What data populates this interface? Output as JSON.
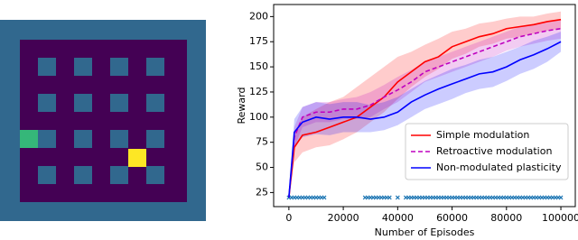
{
  "chart_data": {
    "type": "line",
    "xlabel": "Number of Episodes",
    "ylabel": "Reward",
    "xlim": [
      -5600,
      105300
    ],
    "ylim": [
      11,
      212
    ],
    "xticks": [
      0,
      20000,
      40000,
      60000,
      80000,
      100000
    ],
    "yticks": [
      25,
      50,
      75,
      100,
      125,
      150,
      175,
      200
    ],
    "legend": "lower right",
    "x": [
      0,
      2000,
      5000,
      10000,
      15000,
      20000,
      25000,
      30000,
      35000,
      40000,
      45000,
      50000,
      55000,
      60000,
      65000,
      70000,
      75000,
      80000,
      85000,
      90000,
      95000,
      100000
    ],
    "series": [
      {
        "name": "Simple modulation",
        "color": "#ff0000",
        "dash": false,
        "values": [
          20,
          70,
          82,
          85,
          90,
          95,
          100,
          110,
          120,
          135,
          145,
          155,
          160,
          170,
          175,
          180,
          183,
          188,
          190,
          192,
          195,
          197
        ],
        "lower": [
          20,
          55,
          65,
          70,
          72,
          78,
          85,
          95,
          105,
          118,
          130,
          140,
          148,
          158,
          163,
          170,
          173,
          178,
          180,
          183,
          186,
          188
        ],
        "upper": [
          20,
          85,
          100,
          108,
          115,
          120,
          130,
          140,
          150,
          160,
          165,
          172,
          178,
          185,
          188,
          193,
          195,
          198,
          200,
          200,
          203,
          205
        ]
      },
      {
        "name": "Retroactive modulation",
        "color": "#bf00bf",
        "dash": true,
        "values": [
          20,
          80,
          100,
          105,
          105,
          108,
          108,
          112,
          120,
          127,
          135,
          145,
          150,
          155,
          160,
          165,
          170,
          175,
          180,
          183,
          186,
          188
        ],
        "lower": [
          20,
          70,
          90,
          95,
          95,
          98,
          98,
          100,
          108,
          115,
          125,
          135,
          140,
          145,
          150,
          155,
          160,
          166,
          170,
          173,
          176,
          178
        ],
        "upper": [
          20,
          90,
          110,
          115,
          115,
          118,
          120,
          125,
          132,
          140,
          147,
          155,
          160,
          165,
          170,
          175,
          180,
          185,
          190,
          192,
          195,
          197
        ]
      },
      {
        "name": "Non-modulated plasticity",
        "color": "#0000ff",
        "dash": false,
        "values": [
          20,
          85,
          95,
          100,
          98,
          100,
          100,
          98,
          100,
          105,
          115,
          122,
          128,
          133,
          138,
          143,
          145,
          150,
          157,
          162,
          168,
          175
        ],
        "lower": [
          20,
          70,
          80,
          83,
          82,
          85,
          85,
          85,
          87,
          92,
          100,
          108,
          113,
          118,
          124,
          128,
          130,
          136,
          143,
          148,
          155,
          165
        ],
        "upper": [
          20,
          98,
          110,
          115,
          113,
          115,
          115,
          112,
          115,
          120,
          128,
          136,
          142,
          148,
          152,
          157,
          160,
          165,
          170,
          176,
          180,
          185
        ]
      }
    ],
    "points": {
      "color": "#1f77b4",
      "y": 20,
      "x": [
        0,
        1000,
        2000,
        3000,
        4000,
        5000,
        6000,
        7000,
        8000,
        9000,
        10000,
        11000,
        12000,
        13000,
        28000,
        29000,
        30000,
        31000,
        32000,
        33000,
        34000,
        35000,
        36000,
        37000,
        40000,
        43000,
        44000,
        45000,
        46000,
        47000,
        48000,
        49000,
        50000,
        51000,
        52000,
        53000,
        54000,
        55000,
        56000,
        57000,
        58000,
        59000,
        60000,
        61000,
        62000,
        63000,
        64000,
        65000,
        66000,
        67000,
        68000,
        69000,
        70000,
        71000,
        72000,
        73000,
        74000,
        75000,
        76000,
        77000,
        78000,
        79000,
        80000,
        81000,
        82000,
        83000,
        84000,
        85000,
        86000,
        87000,
        88000,
        89000,
        90000,
        91000,
        92000,
        93000,
        94000,
        95000,
        96000,
        97000,
        98000,
        99000,
        100000
      ]
    }
  }
}
